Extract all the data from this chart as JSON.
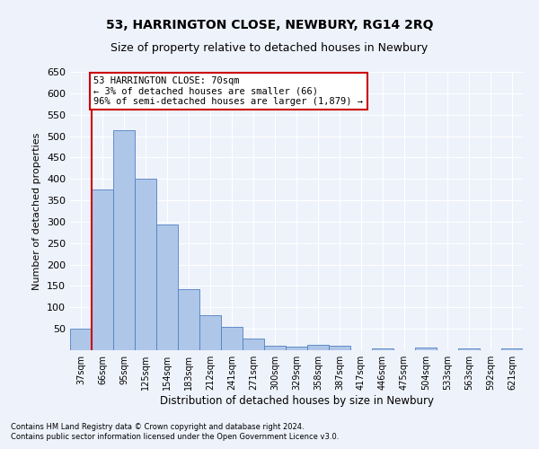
{
  "title": "53, HARRINGTON CLOSE, NEWBURY, RG14 2RQ",
  "subtitle": "Size of property relative to detached houses in Newbury",
  "xlabel": "Distribution of detached houses by size in Newbury",
  "ylabel": "Number of detached properties",
  "categories": [
    "37sqm",
    "66sqm",
    "95sqm",
    "125sqm",
    "154sqm",
    "183sqm",
    "212sqm",
    "241sqm",
    "271sqm",
    "300sqm",
    "329sqm",
    "358sqm",
    "387sqm",
    "417sqm",
    "446sqm",
    "475sqm",
    "504sqm",
    "533sqm",
    "563sqm",
    "592sqm",
    "621sqm"
  ],
  "values": [
    50,
    375,
    513,
    400,
    293,
    143,
    82,
    55,
    28,
    11,
    9,
    12,
    11,
    0,
    5,
    0,
    6,
    0,
    5,
    0,
    5
  ],
  "bar_color": "#aec6e8",
  "bar_edge_color": "#5080c0",
  "vline_color": "#cc0000",
  "annotation_text": "53 HARRINGTON CLOSE: 70sqm\n← 3% of detached houses are smaller (66)\n96% of semi-detached houses are larger (1,879) →",
  "annotation_box_color": "#ffffff",
  "annotation_box_edge_color": "#cc0000",
  "ylim": [
    0,
    650
  ],
  "yticks": [
    0,
    50,
    100,
    150,
    200,
    250,
    300,
    350,
    400,
    450,
    500,
    550,
    600,
    650
  ],
  "footnote1": "Contains HM Land Registry data © Crown copyright and database right 2024.",
  "footnote2": "Contains public sector information licensed under the Open Government Licence v3.0.",
  "background_color": "#eef2fb",
  "title_fontsize": 10,
  "subtitle_fontsize": 9,
  "annotation_fontsize": 7.5
}
